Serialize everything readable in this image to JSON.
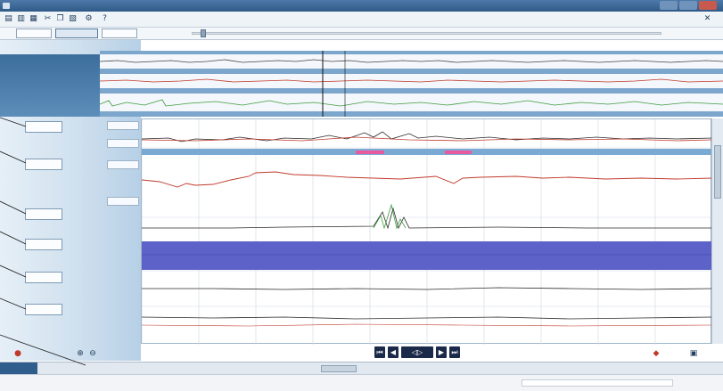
{
  "window": {
    "title": "",
    "accent": "#2f5a88"
  },
  "toolbar": {
    "icons": [
      "open-icon",
      "save-icon",
      "print-icon",
      "cut-icon",
      "copy-icon",
      "paste-icon",
      "settings-icon",
      "help-icon"
    ]
  },
  "tabs": [
    {
      "label": ""
    },
    {
      "label": ""
    },
    {
      "label": ""
    }
  ],
  "record_label": "",
  "zoom_readout": "",
  "left_panel": {
    "overview_labels": [
      "",
      "",
      ""
    ],
    "channel_buttons": [
      "",
      "",
      "",
      "",
      "",
      ""
    ],
    "scale_labels": [
      "",
      "",
      "",
      ""
    ]
  },
  "time_ticks": [
    "",
    "",
    "",
    "",
    "",
    "",
    "",
    "",
    "",
    ""
  ],
  "playback": {
    "buttons": [
      "skip-start-icon",
      "step-back-icon",
      "play-icon",
      "step-forward-icon",
      "skip-end-icon"
    ]
  },
  "status": {
    "left": "",
    "right": ""
  },
  "colors": {
    "trace_red": "#c0392b",
    "trace_dark": "#2b2b2b",
    "trace_green": "#3e9b3e",
    "band_blue": "#5d62c9",
    "event_pink": "#e85aa0",
    "overview_bg": "#7da6cc",
    "panel_blue": "#b6d0e6"
  }
}
